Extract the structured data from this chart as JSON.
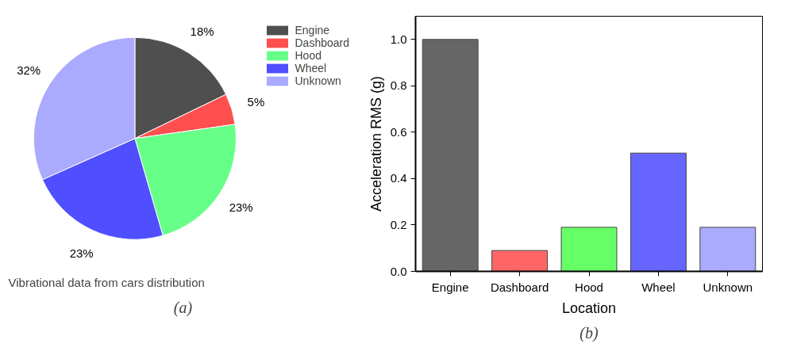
{
  "chart_data": [
    {
      "type": "pie",
      "title": "Vibrational data from cars distribution",
      "annotations": [
        "(a)"
      ],
      "categories": [
        "Engine",
        "Dashboard",
        "Hood",
        "Wheel",
        "Unknown"
      ],
      "values": [
        18,
        5,
        23,
        23,
        32
      ],
      "value_labels": [
        "18%",
        "5%",
        "23%",
        "23%",
        "32%"
      ],
      "colors": [
        "#4f4f4f",
        "#ff4f4f",
        "#66ff88",
        "#4f4fff",
        "#aaaaff"
      ],
      "legend": "top right"
    },
    {
      "type": "bar",
      "xlabel": "Location",
      "ylabel": "Acceleration RMS (g)",
      "annotations": [
        "(b)"
      ],
      "categories": [
        "Engine",
        "Dashboard",
        "Hood",
        "Wheel",
        "Unknown"
      ],
      "values": [
        1.0,
        0.09,
        0.19,
        0.51,
        0.19
      ],
      "colors": [
        "#666666",
        "#ff6666",
        "#66ff66",
        "#6666ff",
        "#aaaaff"
      ],
      "ylim": [
        0,
        1.1
      ],
      "yticks": [
        {
          "value": 0,
          "label": "0.0"
        },
        0.2,
        0.4,
        0.6,
        0.8,
        {
          "value": 1.0,
          "label": "1.0"
        }
      ],
      "grid": false
    }
  ]
}
